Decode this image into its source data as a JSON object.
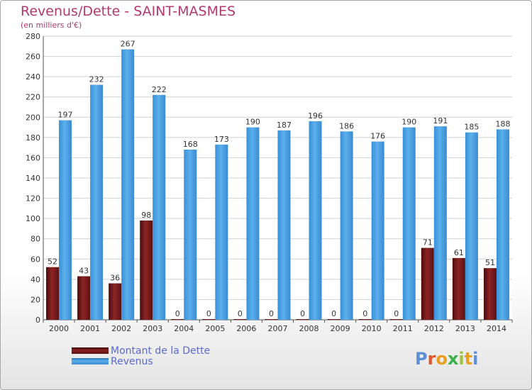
{
  "title": "Revenus/Dette - SAINT-MASMES",
  "subtitle": "(en milliers d'€)",
  "logo_text": "Proxiti",
  "colors": {
    "debt": "#7a1a1a",
    "revenue": "#4fa3e2",
    "title": "#b03a6e",
    "legend_text": "#5b6bd0"
  },
  "chart_data": {
    "type": "bar",
    "title": "Revenus/Dette - SAINT-MASMES",
    "subtitle": "(en milliers d'€)",
    "categories": [
      "2000",
      "2001",
      "2002",
      "2003",
      "2004",
      "2005",
      "2006",
      "2007",
      "2008",
      "2009",
      "2010",
      "2011",
      "2012",
      "2013",
      "2014"
    ],
    "series": [
      {
        "name": "Montant de la Dette",
        "values": [
          52,
          43,
          36,
          98,
          0,
          0,
          0,
          0,
          0,
          0,
          0,
          0,
          71,
          61,
          51
        ]
      },
      {
        "name": "Revenus",
        "values": [
          197,
          232,
          267,
          222,
          168,
          173,
          190,
          187,
          196,
          186,
          176,
          190,
          191,
          185,
          188
        ]
      }
    ],
    "ylim": [
      0,
      280
    ],
    "yticks": [
      0,
      20,
      40,
      60,
      80,
      100,
      120,
      140,
      160,
      180,
      200,
      220,
      240,
      260,
      280
    ],
    "grid": true,
    "legend_position": "bottom-left"
  }
}
